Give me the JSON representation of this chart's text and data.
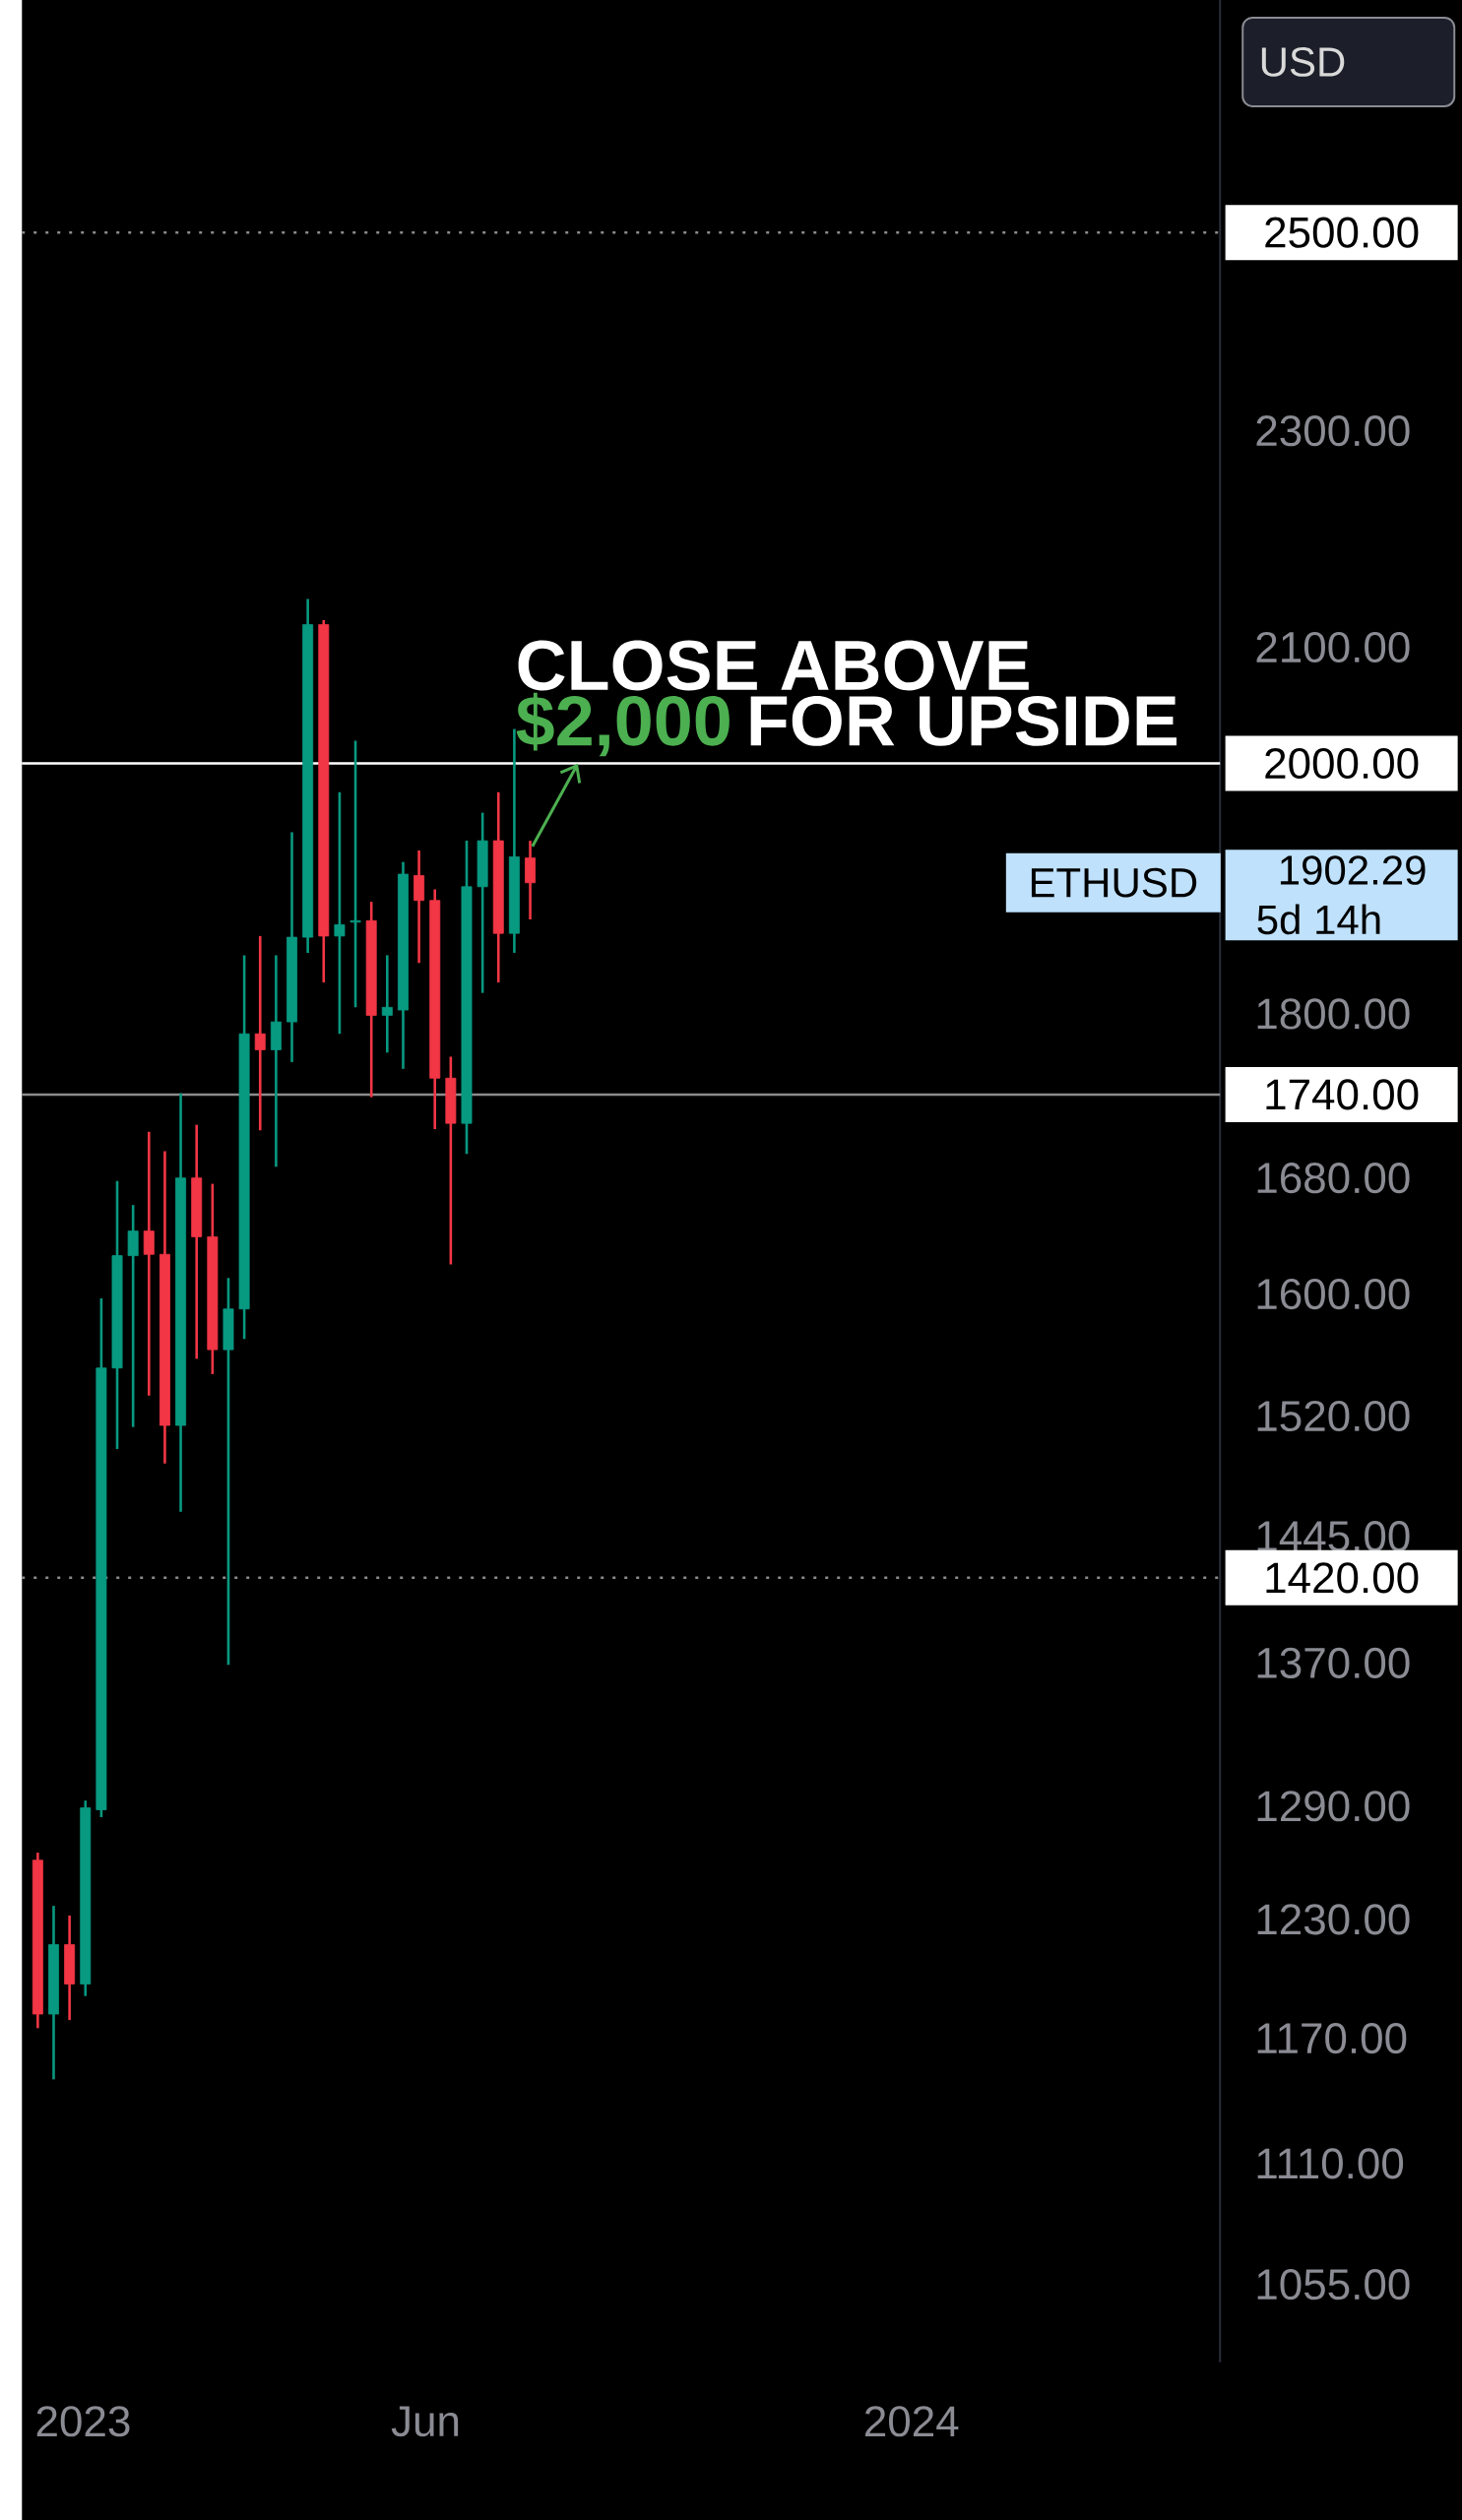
{
  "chart_data": {
    "type": "candlestick",
    "x": [
      "2022-12-12",
      "2022-12-19",
      "2022-12-26",
      "2023-01-02",
      "2023-01-09",
      "2023-01-16",
      "2023-01-23",
      "2023-01-30",
      "2023-02-06",
      "2023-02-13",
      "2023-02-20",
      "2023-02-27",
      "2023-03-06",
      "2023-03-13",
      "2023-03-20",
      "2023-03-27",
      "2023-04-03",
      "2023-04-10",
      "2023-04-17",
      "2023-04-24",
      "2023-05-01",
      "2023-05-08",
      "2023-05-15",
      "2023-05-22",
      "2023-05-29",
      "2023-06-05",
      "2023-06-12",
      "2023-06-19",
      "2023-06-26",
      "2023-07-03",
      "2023-07-10",
      "2023-07-17"
    ],
    "ohlc": [
      [
        1261,
        1265,
        1175,
        1182
      ],
      [
        1182,
        1237,
        1150,
        1217
      ],
      [
        1217,
        1232,
        1179,
        1197
      ],
      [
        1197,
        1293,
        1191,
        1289
      ],
      [
        1288,
        1597,
        1284,
        1551
      ],
      [
        1551,
        1678,
        1499,
        1626
      ],
      [
        1626,
        1661,
        1513,
        1643
      ],
      [
        1643,
        1713,
        1533,
        1627
      ],
      [
        1627,
        1699,
        1490,
        1514
      ],
      [
        1514,
        1741,
        1460,
        1680
      ],
      [
        1680,
        1718,
        1557,
        1639
      ],
      [
        1639,
        1676,
        1547,
        1563
      ],
      [
        1563,
        1611,
        1369,
        1590
      ],
      [
        1590,
        1845,
        1570,
        1785
      ],
      [
        1785,
        1860,
        1714,
        1773
      ],
      [
        1773,
        1845,
        1688,
        1794
      ],
      [
        1794,
        1943,
        1764,
        1859
      ],
      [
        1859,
        2143,
        1847,
        2120
      ],
      [
        2120,
        2124,
        1824,
        1860
      ],
      [
        1860,
        1976,
        1785,
        1869
      ],
      [
        1871,
        2019,
        1805,
        1872
      ],
      [
        1872,
        1887,
        1738,
        1799
      ],
      [
        1799,
        1845,
        1771,
        1805
      ],
      [
        1803,
        1919,
        1759,
        1909
      ],
      [
        1908,
        1928,
        1839,
        1888
      ],
      [
        1888,
        1897,
        1715,
        1752
      ],
      [
        1752,
        1768,
        1620,
        1719
      ],
      [
        1719,
        1936,
        1697,
        1899
      ],
      [
        1899,
        1959,
        1816,
        1936
      ],
      [
        1936,
        1976,
        1824,
        1862
      ],
      [
        1862,
        2029,
        1847,
        1923
      ],
      [
        1922,
        1936,
        1873,
        1902.29
      ]
    ],
    "colors": [
      "#f23645",
      "#089981",
      "#f23645",
      "#089981",
      "#089981",
      "#089981",
      "#089981",
      "#f23645",
      "#f23645",
      "#089981",
      "#f23645",
      "#f23645",
      "#089981",
      "#089981",
      "#f23645",
      "#089981",
      "#089981",
      "#089981",
      "#f23645",
      "#089981",
      "#089981",
      "#f23645",
      "#089981",
      "#089981",
      "#f23645",
      "#f23645",
      "#f23645",
      "#089981",
      "#089981",
      "#f23645",
      "#089981",
      "#f23645"
    ],
    "log": true,
    "ylim": [
      1021,
      2757
    ],
    "yticks": [
      {
        "value": 1055,
        "label": "1055.00"
      },
      {
        "value": 1110,
        "label": "1110.00"
      },
      {
        "value": 1170,
        "label": "1170.00"
      },
      {
        "value": 1230,
        "label": "1230.00"
      },
      {
        "value": 1290,
        "label": "1290.00"
      },
      {
        "value": 1370,
        "label": "1370.00"
      },
      {
        "value": 1445,
        "label": "1445.00"
      },
      {
        "value": 1520,
        "label": "1520.00"
      },
      {
        "value": 1600,
        "label": "1600.00"
      },
      {
        "value": 1680,
        "label": "1680.00"
      },
      {
        "value": 1800,
        "label": "1800.00"
      },
      {
        "value": 2100,
        "label": "2100.00"
      },
      {
        "value": 2300,
        "label": "2300.00"
      }
    ],
    "xlim": [
      "2022-12-05",
      "2024-05-16"
    ],
    "xticks": [
      {
        "value": "2023-01-01",
        "label": "2023"
      },
      {
        "value": "2023-06-01",
        "label": "Jun"
      },
      {
        "value": "2024-01-01",
        "label": "2024"
      }
    ],
    "ref_lines": [
      {
        "axis": "y",
        "value": 2500,
        "label": "2500.00",
        "color": "#8c8c8c",
        "line_style": "dotted"
      },
      {
        "axis": "y",
        "value": 2000,
        "label": "2000.00",
        "color": "#ffffff",
        "line_style": "solid"
      },
      {
        "axis": "y",
        "value": 1740,
        "label": "1740.00",
        "color": "#8c8c8c",
        "line_style": "solid"
      },
      {
        "axis": "y",
        "value": 1420,
        "label": "1420.00",
        "color": "#8c8c8c",
        "line_style": "dotted"
      }
    ],
    "annotations": [
      "ETHUSD",
      "1902.29",
      "5d 14h",
      {
        "text": "CLOSE ABOVE",
        "x": "2023-08-07",
        "y": 2000
      },
      "$2,000",
      "FOR UPSIDE",
      "USD"
    ]
  }
}
